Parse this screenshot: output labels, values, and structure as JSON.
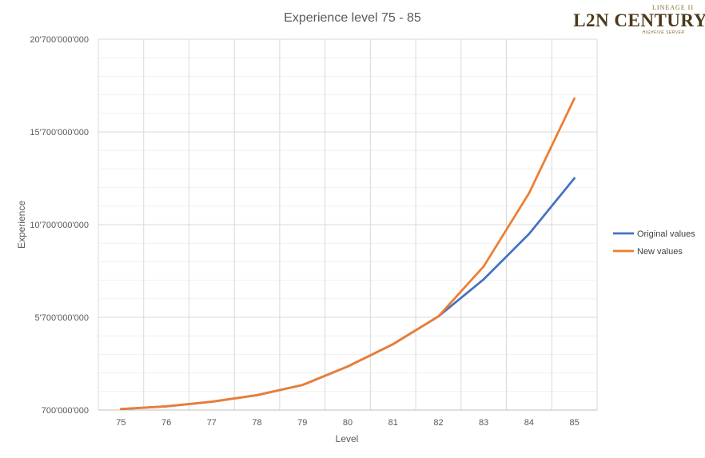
{
  "chart_data": {
    "type": "line",
    "title": "Experience level 75 - 85",
    "xlabel": "Level",
    "ylabel": "Experience",
    "x": [
      75,
      76,
      77,
      78,
      79,
      80,
      81,
      82,
      83,
      84,
      85
    ],
    "ylim": [
      700000000,
      20700000000
    ],
    "yticks": [
      700000000,
      5700000000,
      10700000000,
      15700000000,
      20700000000
    ],
    "ytick_labels": [
      "700'000'000",
      "5'700'000'000",
      "10'700'000'000",
      "15'700'000'000",
      "20'700'000'000"
    ],
    "grid": true,
    "legend_position": "right",
    "series": [
      {
        "name": "Original values",
        "color": "#4472c4",
        "values": [
          750000000,
          900000000,
          1150000000,
          1500000000,
          2050000000,
          3050000000,
          4250000000,
          5750000000,
          7750000000,
          10200000000,
          13200000000
        ]
      },
      {
        "name": "New values",
        "color": "#ed7d31",
        "values": [
          750000000,
          900000000,
          1150000000,
          1500000000,
          2050000000,
          3050000000,
          4250000000,
          5750000000,
          8450000000,
          12400000000,
          17500000000
        ]
      }
    ]
  },
  "logo": {
    "top_text": "LINEAGE II",
    "main_text": "L2N CENTURY",
    "sub_text": "HIGHFIVE SERVER"
  }
}
